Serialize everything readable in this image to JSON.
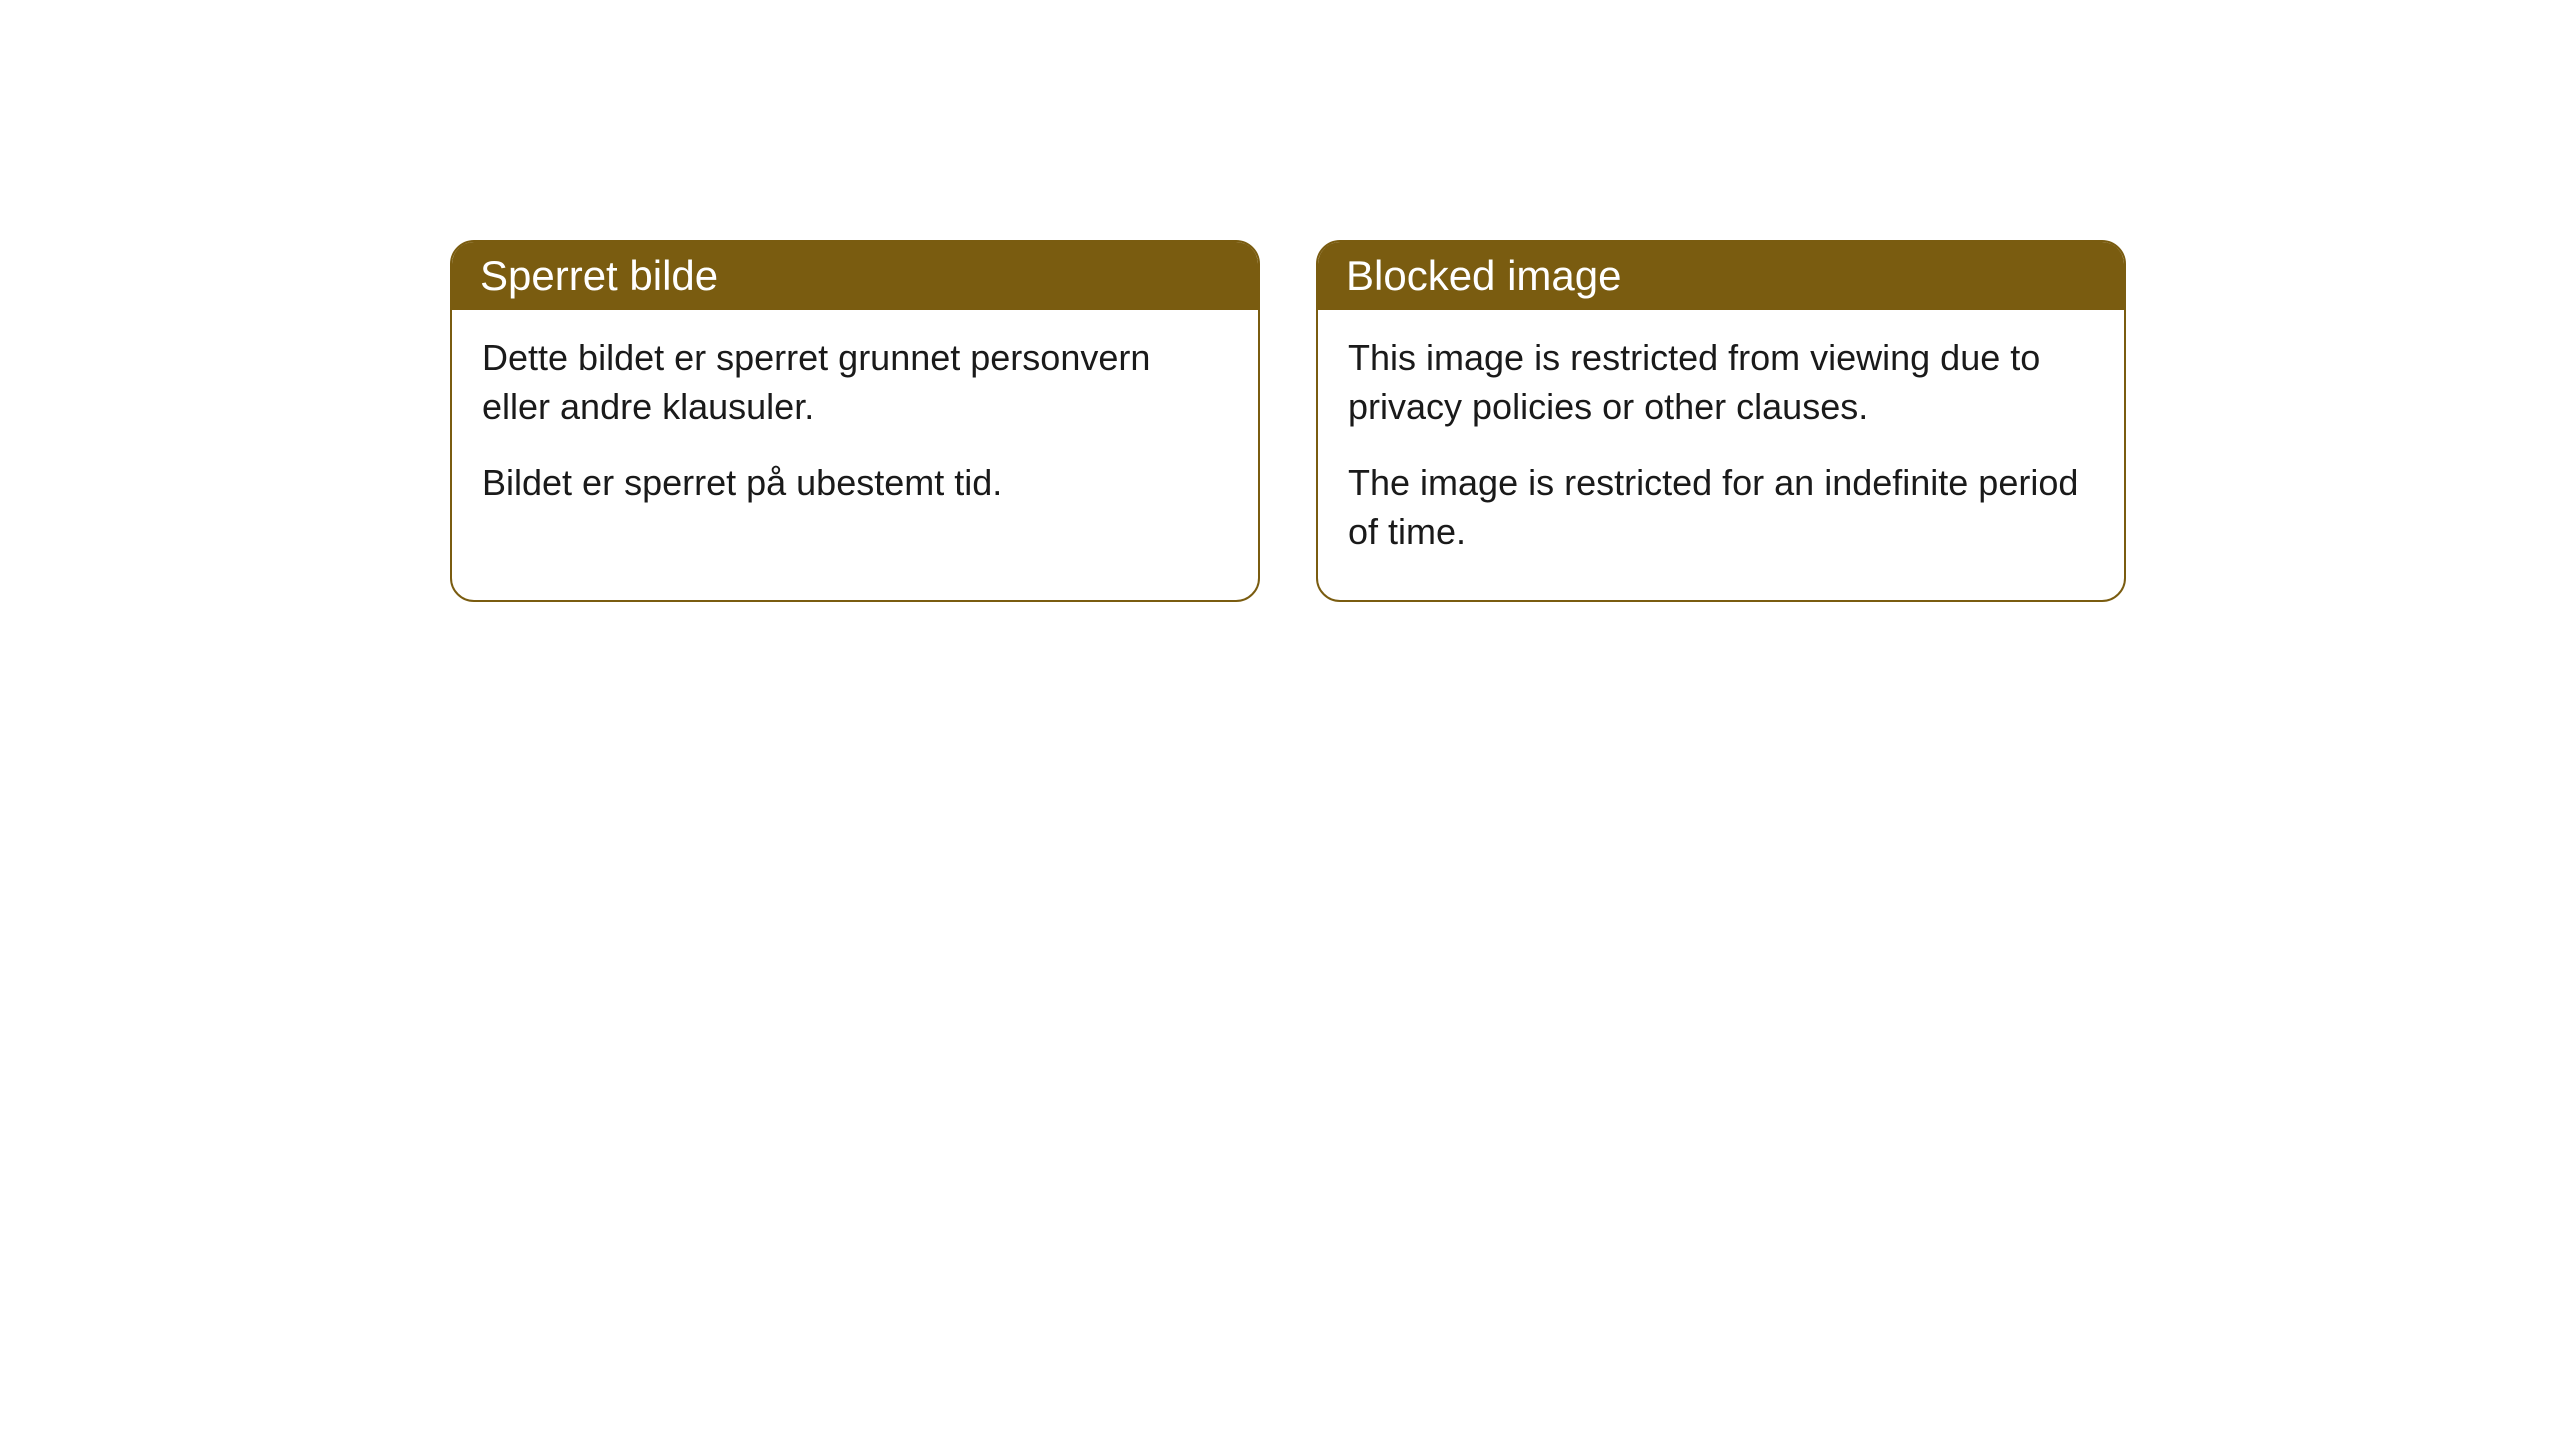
{
  "cards": [
    {
      "header": "Sperret bilde",
      "paragraph1": "Dette bildet er sperret grunnet personvern eller andre klausuler.",
      "paragraph2": "Bildet er sperret på ubestemt tid."
    },
    {
      "header": "Blocked image",
      "paragraph1": "This image is restricted from viewing due to privacy policies or other clauses.",
      "paragraph2": "The image is restricted for an indefinite period of time."
    }
  ],
  "style": {
    "header_bg": "#7a5c10",
    "header_text_color": "#ffffff",
    "border_color": "#7a5c10",
    "body_text_color": "#1a1a1a",
    "background_color": "#ffffff",
    "border_radius": 24,
    "header_fontsize": 42,
    "body_fontsize": 36
  }
}
